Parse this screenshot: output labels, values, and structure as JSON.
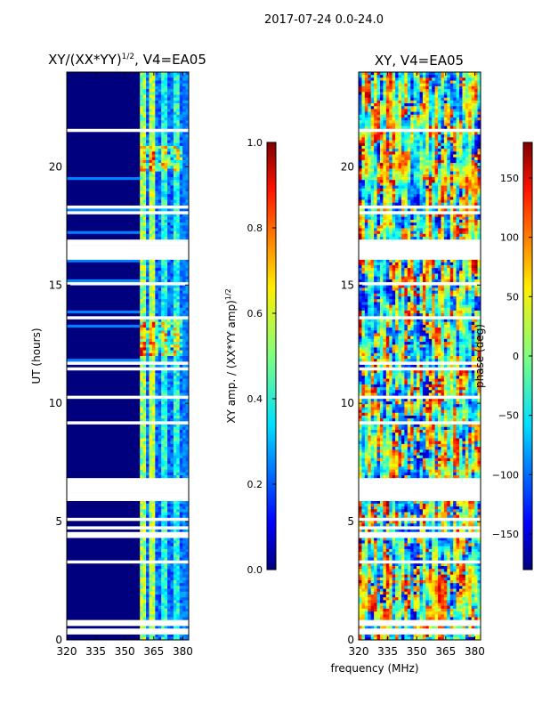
{
  "suptitle": "2017-07-24 0.0-24.0",
  "chart_data": [
    {
      "type": "heatmap",
      "title": "XY/(XX*YY)",
      "title_sup": "1/2",
      "title_rest": ", V4=EA05",
      "ylabel": "UT (hours)",
      "xlim": [
        320,
        383
      ],
      "ylim": [
        0,
        24
      ],
      "xticks": [
        320,
        335,
        350,
        365,
        380
      ],
      "yticks": [
        0,
        5,
        10,
        15,
        20
      ],
      "colorbar": {
        "label": "XY amp. / (XX*YY amp)",
        "label_sup": "1/2",
        "range": [
          0.0,
          1.0
        ],
        "ticks": [
          "0.0",
          "0.2",
          "0.4",
          "0.6",
          "0.8",
          "1.0"
        ]
      }
    },
    {
      "type": "heatmap",
      "title": "XY, V4=EA05",
      "xlim": [
        320,
        383
      ],
      "ylim": [
        0,
        24
      ],
      "xticks": [
        320,
        335,
        350,
        365,
        380
      ],
      "yticks": [
        0,
        5,
        10,
        15,
        20
      ],
      "colorbar": {
        "label": "phase (deg)",
        "range": [
          -180,
          180
        ],
        "ticks": [
          "−150",
          "−100",
          "−50",
          "0",
          "50",
          "100",
          "150"
        ]
      }
    }
  ],
  "xlabel": "frequency (MHz)"
}
